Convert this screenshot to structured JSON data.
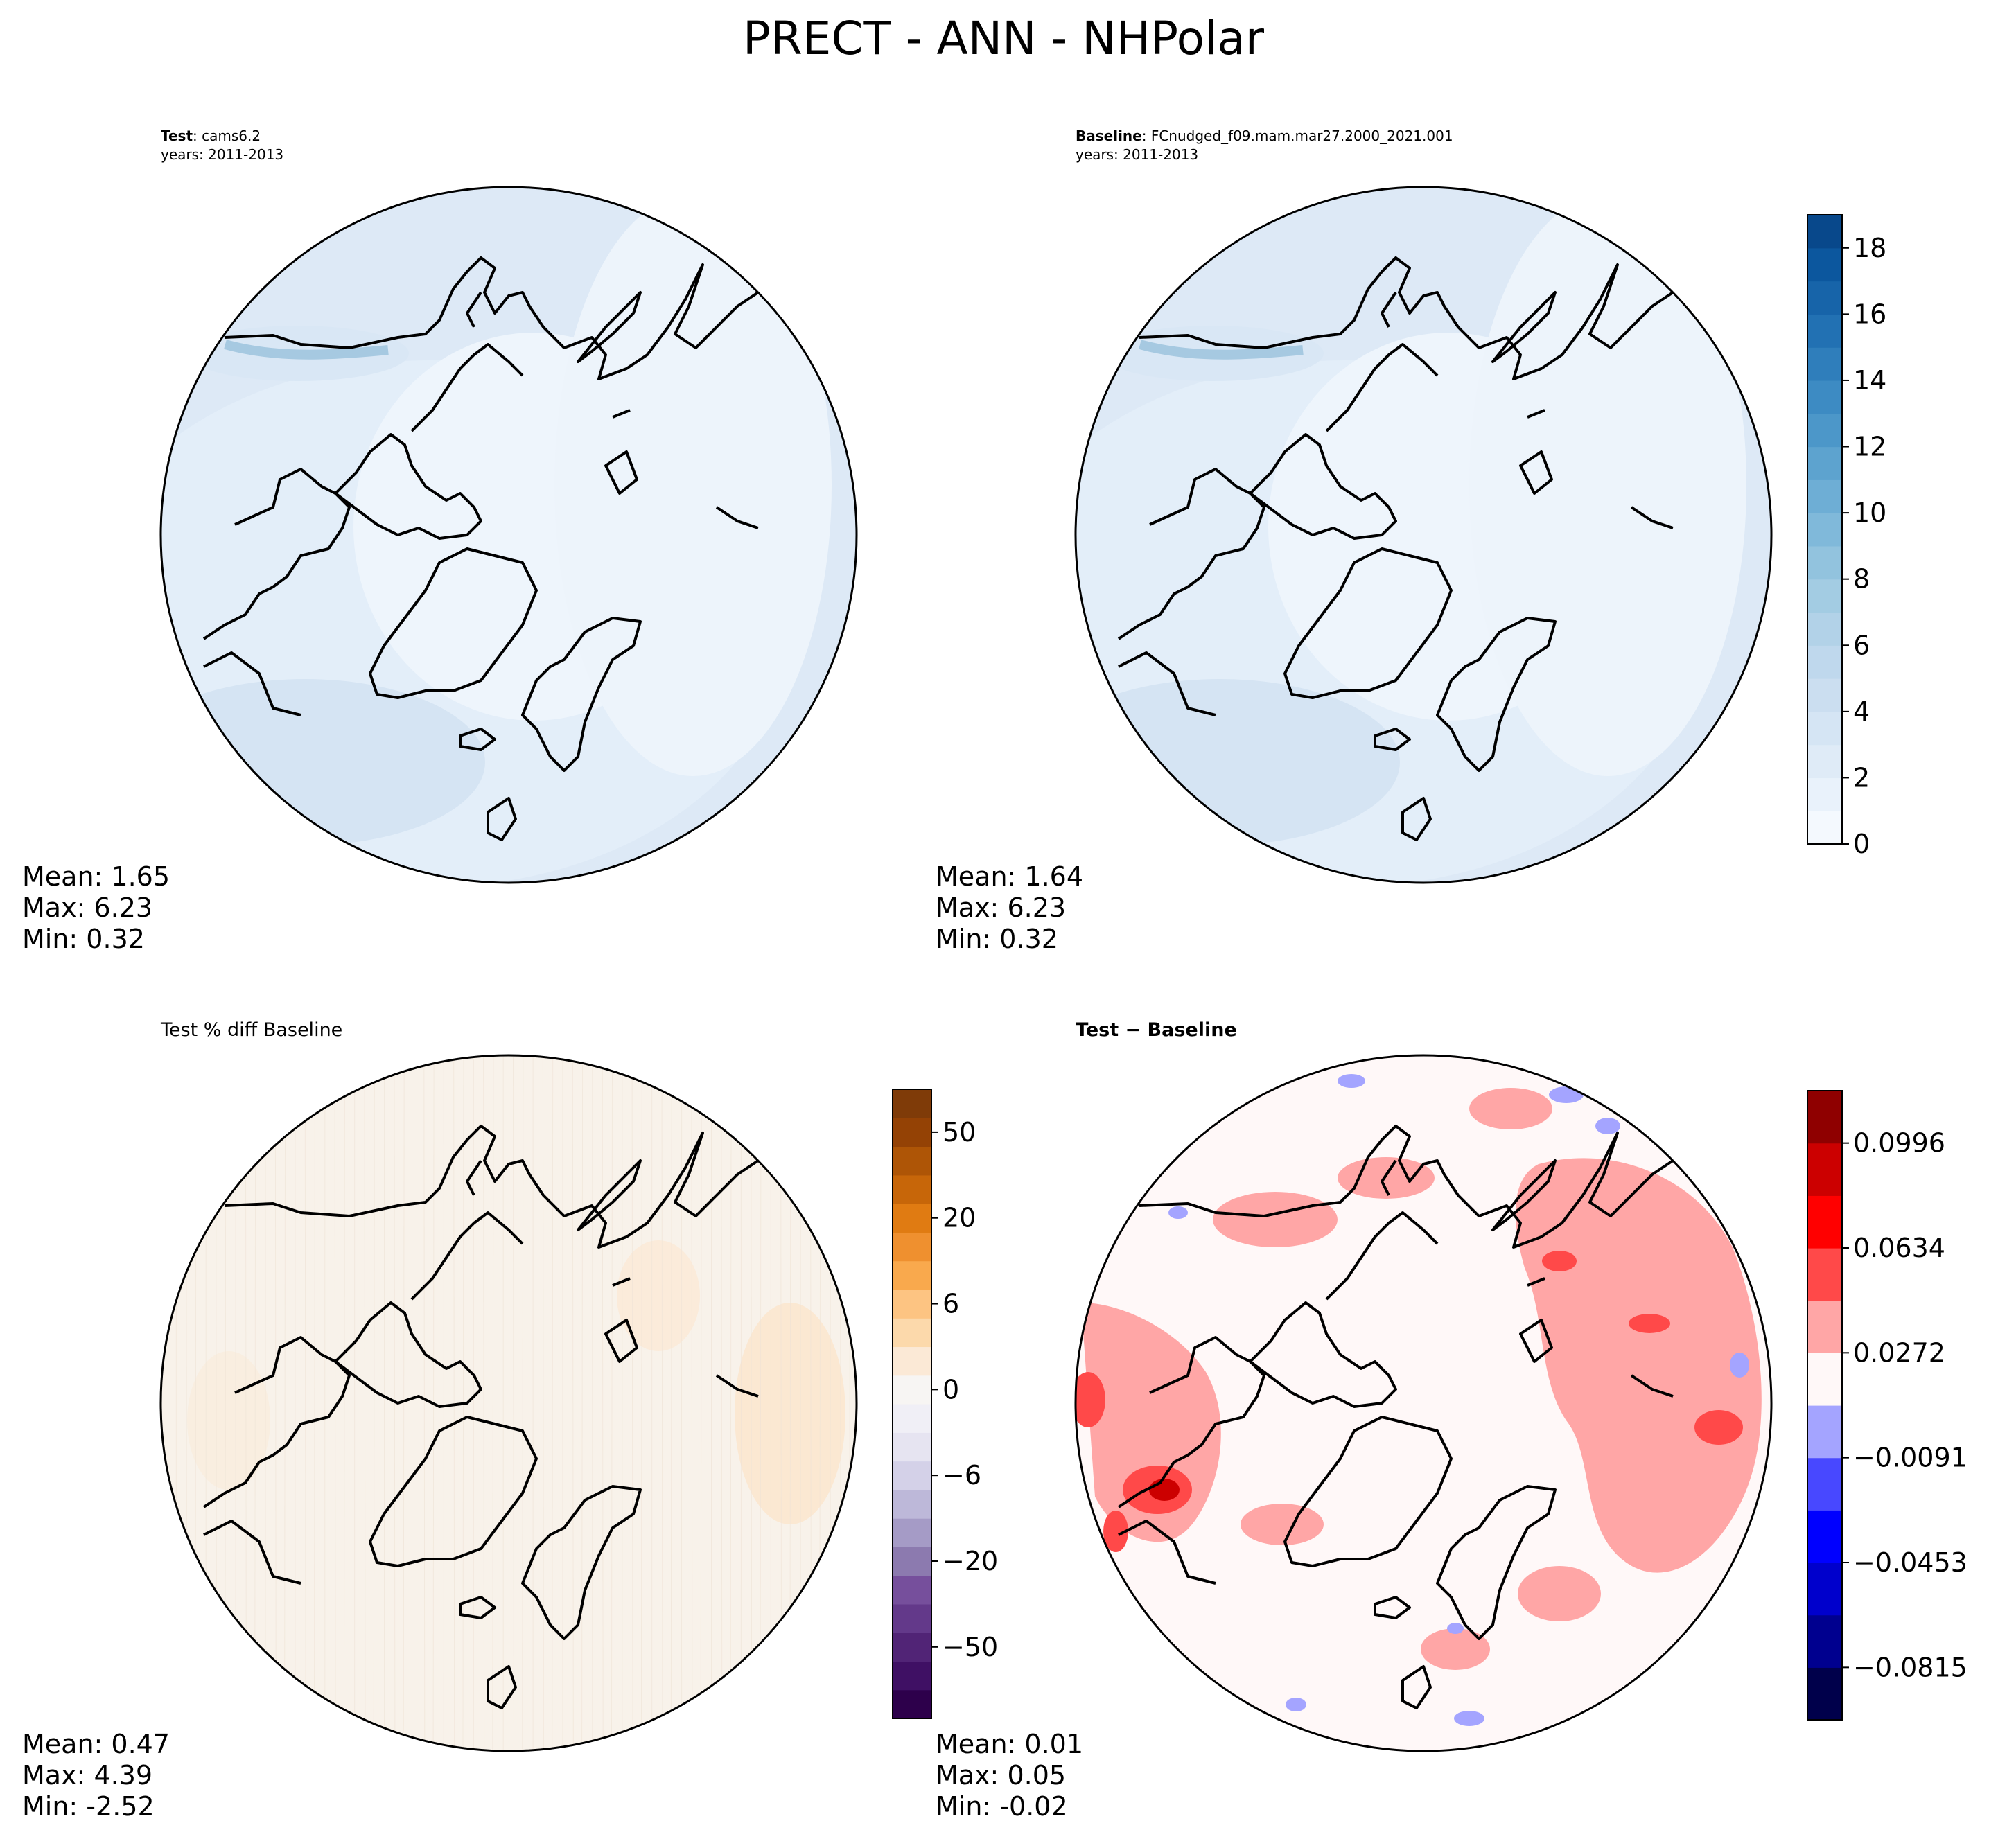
{
  "figure": {
    "title": "PRECT - ANN - NHPolar"
  },
  "panels": [
    {
      "id": "test",
      "title_bold": "Test",
      "title_rest": ": cams6.2",
      "subtitle": "years: 2011-2013",
      "stats": {
        "mean_label": "Mean:  1.65",
        "max_label": "Max:  6.23",
        "min_label": "Min:  0.32"
      }
    },
    {
      "id": "baseline",
      "title_bold": "Baseline",
      "title_rest": ": FCnudged_f09.mam.mar27.2000_2021.001",
      "subtitle": "years: 2011-2013",
      "stats": {
        "mean_label": "Mean:  1.64",
        "max_label": "Max:  6.23",
        "min_label": "Min:  0.32"
      }
    },
    {
      "id": "pctdiff",
      "title": "Test % diff Baseline",
      "stats": {
        "mean_label": "Mean:  0.47",
        "max_label": "Max:  4.39",
        "min_label": "Min: -2.52"
      }
    },
    {
      "id": "diff",
      "title": "Test − Baseline",
      "stats": {
        "mean_label": "Mean:  0.01",
        "max_label": "Max:  0.05",
        "min_label": "Min: -0.02"
      }
    }
  ],
  "colorbars": {
    "precip": {
      "range": [
        0,
        19
      ],
      "colors": [
        "#f4f9fe",
        "#e9f2fb",
        "#dfebf7",
        "#d5e5f4",
        "#cbdef0",
        "#bfd8ed",
        "#b2d2e8",
        "#a3cce3",
        "#92c3de",
        "#80b9da",
        "#6eaed5",
        "#5da3cf",
        "#4c97c9",
        "#3d8bc3",
        "#2f7ebb",
        "#2271b3",
        "#1764a9",
        "#0c579e",
        "#08488b"
      ],
      "ticks": [
        {
          "value": 0,
          "label": "0"
        },
        {
          "value": 2,
          "label": "2"
        },
        {
          "value": 4,
          "label": "4"
        },
        {
          "value": 6,
          "label": "6"
        },
        {
          "value": 8,
          "label": "8"
        },
        {
          "value": 10,
          "label": "10"
        },
        {
          "value": 12,
          "label": "12"
        },
        {
          "value": 14,
          "label": "14"
        },
        {
          "value": 16,
          "label": "16"
        },
        {
          "value": 18,
          "label": "18"
        }
      ]
    },
    "pctdiff": {
      "colors": [
        "#2d004b",
        "#3f1064",
        "#512476",
        "#63398a",
        "#764f9c",
        "#8c7aaf",
        "#a59bc6",
        "#bdb8d9",
        "#d4d1e8",
        "#e6e4f1",
        "#f0eff6",
        "#f7f5f3",
        "#fbe9d6",
        "#fcd9ab",
        "#fdc482",
        "#f9a94d",
        "#ef902f",
        "#e07b12",
        "#c76609",
        "#ae5506",
        "#944205",
        "#7f3b08"
      ],
      "ticks": [
        {
          "index": 2,
          "label": "−50"
        },
        {
          "index": 5,
          "label": "−20"
        },
        {
          "index": 8,
          "label": "−6"
        },
        {
          "index": 11,
          "label": "0"
        },
        {
          "index": 14,
          "label": "6"
        },
        {
          "index": 17,
          "label": "20"
        },
        {
          "index": 20,
          "label": "50"
        }
      ]
    },
    "diff": {
      "colors": [
        "#00004b",
        "#00008f",
        "#0000cc",
        "#0000ff",
        "#4848ff",
        "#a4a4ff",
        "#fff8f8",
        "#ffa6a6",
        "#ff4949",
        "#ff0000",
        "#cc0000",
        "#8f0000"
      ],
      "ticks": [
        {
          "index": 1,
          "label": "−0.0815"
        },
        {
          "index": 3,
          "label": "−0.0453"
        },
        {
          "index": 5,
          "label": "−0.0091"
        },
        {
          "index": 7,
          "label": "0.0272"
        },
        {
          "index": 9,
          "label": "0.0634"
        },
        {
          "index": 11,
          "label": "0.0996"
        }
      ]
    }
  },
  "chart_data": [
    {
      "type": "contour-map",
      "panel": "test",
      "variable": "PRECT",
      "season": "ANN",
      "region": "NHPolar",
      "mean": 1.65,
      "max": 6.23,
      "min": 0.32,
      "colorbar_range": [
        0,
        19
      ]
    },
    {
      "type": "contour-map",
      "panel": "baseline",
      "variable": "PRECT",
      "season": "ANN",
      "region": "NHPolar",
      "mean": 1.64,
      "max": 6.23,
      "min": 0.32,
      "colorbar_range": [
        0,
        19
      ]
    },
    {
      "type": "contour-map",
      "panel": "test_pct_diff_baseline",
      "mean": 0.47,
      "max": 4.39,
      "min": -2.52,
      "colorbar_ticks": [
        -50,
        -20,
        -6,
        0,
        6,
        20,
        50
      ]
    },
    {
      "type": "contour-map",
      "panel": "test_minus_baseline",
      "mean": 0.01,
      "max": 0.05,
      "min": -0.02,
      "colorbar_ticks": [
        -0.0815,
        -0.0453,
        -0.0091,
        0.0272,
        0.0634,
        0.0996
      ]
    }
  ]
}
